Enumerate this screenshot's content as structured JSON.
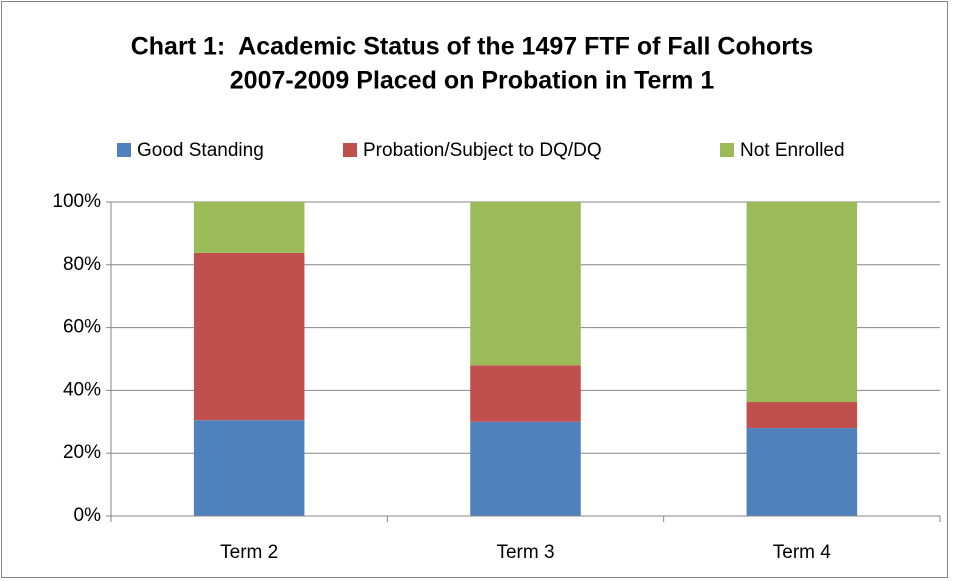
{
  "chart_data": {
    "type": "stacked_bar",
    "title": [
      "Chart 1:  Academic Status of the 1497 FTF of Fall Cohorts",
      "2007-2009 Placed on Probation in Term 1"
    ],
    "categories": [
      "Term 2",
      "Term 3",
      "Term 4"
    ],
    "series": [
      {
        "name": "Good Standing",
        "color": "#4f81bd",
        "values": [
          30.5,
          30,
          28
        ]
      },
      {
        "name": "Probation/Subject to DQ/DQ",
        "color": "#c0504d",
        "values": [
          53.3,
          18,
          8.3
        ]
      },
      {
        "name": "Not Enrolled",
        "color": "#9bbb59",
        "values": [
          16.2,
          52,
          63.7
        ]
      }
    ],
    "ylim": [
      0,
      100
    ],
    "yticks": [
      {
        "value": 0,
        "label": "0%"
      },
      {
        "value": 20,
        "label": "20%"
      },
      {
        "value": 40,
        "label": "40%"
      },
      {
        "value": 60,
        "label": "60%"
      },
      {
        "value": 80,
        "label": "80%"
      },
      {
        "value": 100,
        "label": "100%"
      }
    ],
    "grid": true,
    "legend": "top"
  }
}
